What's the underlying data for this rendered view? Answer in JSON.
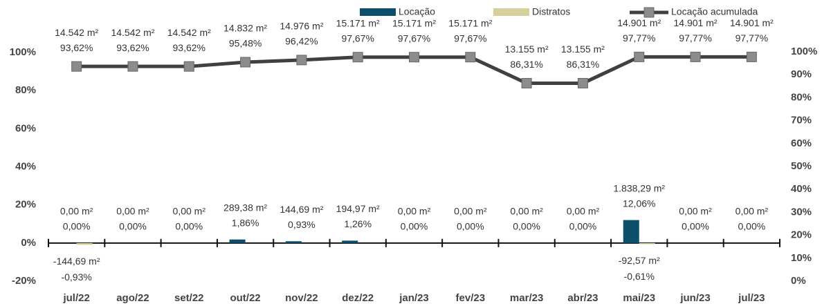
{
  "chart_data": {
    "type": "bar",
    "categories": [
      "jul/22",
      "ago/22",
      "set/22",
      "out/22",
      "nov/22",
      "dez/22",
      "jan/23",
      "fev/23",
      "mar/23",
      "abr/23",
      "mai/23",
      "jun/23",
      "jul/23"
    ],
    "ylim": [
      -20,
      100
    ],
    "yticks": [
      {
        "value": -20,
        "label": "-20%"
      },
      {
        "value": 0,
        "label": "0%"
      },
      {
        "value": 20,
        "label": "20%"
      },
      {
        "value": 40,
        "label": "40%"
      },
      {
        "value": 60,
        "label": "60%"
      },
      {
        "value": 80,
        "label": "80%"
      },
      {
        "value": 100,
        "label": "100%"
      }
    ],
    "y2lim": [
      0,
      100
    ],
    "y2ticks": [
      {
        "value": 0,
        "label": "0%"
      },
      {
        "value": 10,
        "label": "10%"
      },
      {
        "value": 20,
        "label": "20%"
      },
      {
        "value": 30,
        "label": "30%"
      },
      {
        "value": 40,
        "label": "40%"
      },
      {
        "value": 50,
        "label": "50%"
      },
      {
        "value": 60,
        "label": "60%"
      },
      {
        "value": 70,
        "label": "70%"
      },
      {
        "value": 80,
        "label": "80%"
      },
      {
        "value": 90,
        "label": "90%"
      },
      {
        "value": 100,
        "label": "100%"
      }
    ],
    "legend": "top-right",
    "series": [
      {
        "name": "Locação",
        "type": "bar",
        "color": "#0d4f6b",
        "values": [
          0,
          0,
          0,
          1.86,
          0.93,
          1.26,
          0,
          0,
          0,
          0,
          12.06,
          0,
          0
        ],
        "value_labels": [
          "0,00%",
          "0,00%",
          "0,00%",
          "1,86%",
          "0,93%",
          "1,26%",
          "0,00%",
          "0,00%",
          "0,00%",
          "0,00%",
          "12,06%",
          "0,00%",
          "0,00%"
        ],
        "area_labels": [
          "0,00 m²",
          "0,00 m²",
          "0,00 m²",
          "289,38 m²",
          "144,69 m²",
          "194,97 m²",
          "0,00 m²",
          "0,00 m²",
          "0,00 m²",
          "0,00 m²",
          "1.838,29 m²",
          "0,00 m²",
          "0,00 m²"
        ]
      },
      {
        "name": "Distratos",
        "type": "bar",
        "color": "#d6d09c",
        "values": [
          -0.93,
          0,
          0,
          0,
          0,
          0,
          0,
          0,
          0,
          0,
          -0.61,
          0,
          0
        ],
        "value_labels": [
          "-0,93%",
          null,
          null,
          null,
          null,
          null,
          null,
          null,
          null,
          null,
          "-0,61%",
          null,
          null
        ],
        "area_labels": [
          "-144,69 m²",
          null,
          null,
          null,
          null,
          null,
          null,
          null,
          null,
          null,
          "-92,57 m²",
          null,
          null
        ]
      },
      {
        "name": "Locação acumulada",
        "type": "line",
        "axis": "y2",
        "color": "#404040",
        "marker_color": "#8c8c8c",
        "values": [
          93.62,
          93.62,
          93.62,
          95.48,
          96.42,
          97.67,
          97.67,
          97.67,
          86.31,
          86.31,
          97.77,
          97.77,
          97.77
        ],
        "value_labels": [
          "93,62%",
          "93,62%",
          "93,62%",
          "95,48%",
          "96,42%",
          "97,67%",
          "97,67%",
          "97,67%",
          "86,31%",
          "86,31%",
          "97,77%",
          "97,77%",
          "97,77%"
        ],
        "area_labels": [
          "14.542 m²",
          "14.542 m²",
          "14.542 m²",
          "14.832 m²",
          "14.976 m²",
          "15.171 m²",
          "15.171 m²",
          "15.171 m²",
          "13.155 m²",
          "13.155 m²",
          "14.901 m²",
          "14.901 m²",
          "14.901 m²"
        ]
      }
    ]
  }
}
